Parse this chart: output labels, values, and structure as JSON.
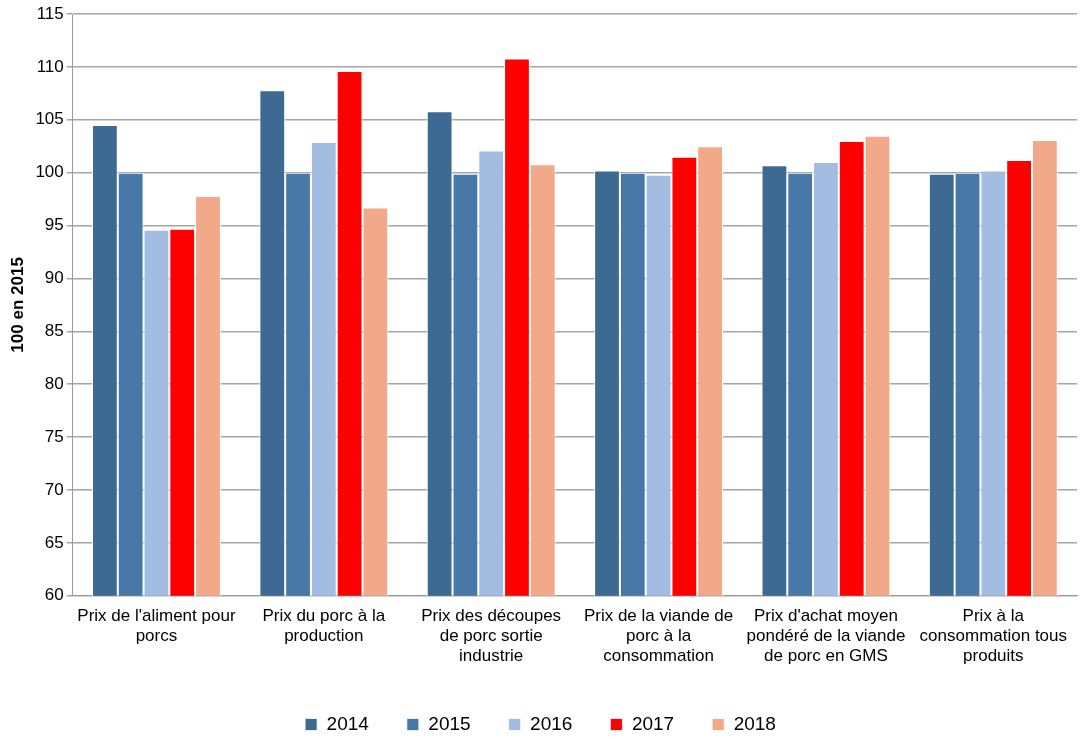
{
  "chart_data": {
    "type": "bar",
    "ylabel": "100 en 2015",
    "categories": [
      "Prix de l'aliment pour porcs",
      "Prix du porc à la production",
      "Prix des découpes de porc sortie industrie",
      "Prix de la viande de porc à la consommation",
      "Prix d'achat moyen pondéré de la viande de porc en GMS",
      "Prix à la consommation tous produits"
    ],
    "series": [
      {
        "name": "2014",
        "color": "#3d6a93",
        "values": [
          104.5,
          107.8,
          105.8,
          100.2,
          100.7,
          99.9
        ]
      },
      {
        "name": "2015",
        "color": "#4878a8",
        "values": [
          100,
          100,
          99.9,
          100,
          100,
          100
        ]
      },
      {
        "name": "2016",
        "color": "#a2bce2",
        "values": [
          94.6,
          102.9,
          102.1,
          99.8,
          101.0,
          100.2
        ]
      },
      {
        "name": "2017",
        "color": "#ff0000",
        "values": [
          94.7,
          109.6,
          110.8,
          101.5,
          103.0,
          101.2
        ]
      },
      {
        "name": "2018",
        "color": "#f1a98a",
        "values": [
          97.8,
          96.7,
          100.8,
          102.5,
          103.5,
          103.1
        ]
      }
    ],
    "ylim": [
      60,
      115
    ],
    "yticks": [
      60,
      65,
      70,
      75,
      80,
      85,
      90,
      95,
      100,
      105,
      110,
      115
    ],
    "grid": "y",
    "legend": "bottom"
  }
}
